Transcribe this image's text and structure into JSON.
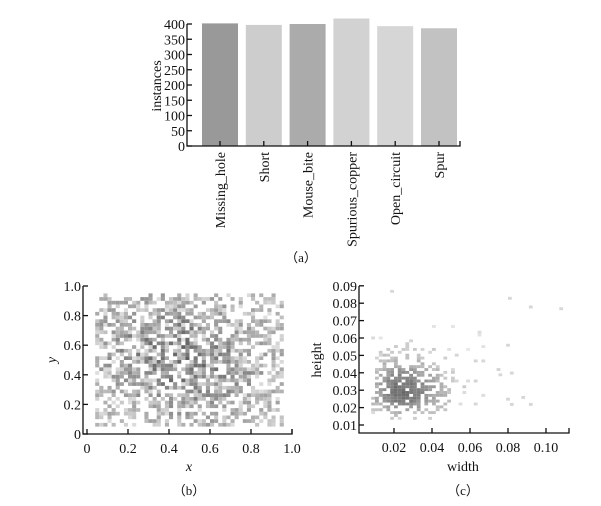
{
  "chart_data": [
    {
      "id": "a",
      "type": "bar",
      "caption": "（a）",
      "title": "",
      "xlabel": "",
      "ylabel": "instances",
      "categories": [
        "Missing_hole",
        "Short",
        "Mouse_bite",
        "Spurious_copper",
        "Open_circuit",
        "Spur"
      ],
      "values": [
        402,
        397,
        400,
        418,
        393,
        386
      ],
      "colors": [
        "#999999",
        "#cdcdcd",
        "#ababab",
        "#d2d2d2",
        "#d6d6d6",
        "#c2c2c2"
      ],
      "ylim": [
        0,
        400
      ],
      "yticks": [
        0,
        50,
        100,
        150,
        200,
        250,
        300,
        350,
        400
      ],
      "ytick_labels": [
        "0",
        "50",
        "100",
        "150",
        "200",
        "250",
        "300",
        "350",
        "400"
      ],
      "grid": false
    },
    {
      "id": "b",
      "type": "heatmap",
      "subtype": "2d-histogram",
      "caption": "（b）",
      "title": "",
      "xlabel": "x",
      "ylabel": "y",
      "xlim": [
        0,
        1.0
      ],
      "ylim": [
        0,
        1.0
      ],
      "xticks": [
        0,
        0.2,
        0.4,
        0.6,
        0.8,
        1.0
      ],
      "xtick_labels": [
        "0",
        "0.2",
        "0.4",
        "0.6",
        "0.8",
        "1.0"
      ],
      "yticks": [
        0,
        0.2,
        0.4,
        0.6,
        0.8,
        1.0
      ],
      "ytick_labels": [
        "0",
        "0.2",
        "0.4",
        "0.6",
        "0.8",
        "1.0"
      ],
      "data_extent": {
        "x": [
          0.04,
          0.96
        ],
        "y": [
          0.05,
          0.95
        ]
      },
      "density_description": "Roughly uniform scatter of bounding-box centers across the image, denser in the middle (x 0.3-0.8, y 0.2-0.8)",
      "density_peaks": [
        {
          "x": 0.55,
          "y": 0.4,
          "spread": 0.25
        },
        {
          "x": 0.35,
          "y": 0.6,
          "spread": 0.25
        }
      ],
      "grid": false
    },
    {
      "id": "c",
      "type": "heatmap",
      "subtype": "2d-histogram",
      "caption": "（c）",
      "title": "",
      "xlabel": "width",
      "ylabel": "height",
      "xlim": [
        0.005,
        0.112
      ],
      "ylim": [
        0.007,
        0.09
      ],
      "xticks": [
        0.02,
        0.04,
        0.06,
        0.08,
        0.1
      ],
      "xtick_labels": [
        "0.02",
        "0.04",
        "0.06",
        "0.08",
        "0.10"
      ],
      "yticks": [
        0.01,
        0.02,
        0.03,
        0.04,
        0.05,
        0.06,
        0.07,
        0.08,
        0.09
      ],
      "ytick_labels": [
        "0.01",
        "0.02",
        "0.03",
        "0.04",
        "0.05",
        "0.06",
        "0.07",
        "0.08",
        "0.09"
      ],
      "data_extent": {
        "x": [
          0.008,
          0.108
        ],
        "y": [
          0.012,
          0.087
        ]
      },
      "density_description": "Concentrated cluster of normalized box sizes around width 0.02, height 0.027, with a sparse tail to width 0.1 and height 0.085",
      "density_peaks": [
        {
          "x": 0.022,
          "y": 0.027,
          "spread_x": 0.01,
          "spread_y": 0.008
        }
      ],
      "outliers": [
        [
          0.08,
          0.082
        ],
        [
          0.091,
          0.077
        ],
        [
          0.107,
          0.076
        ],
        [
          0.079,
          0.055
        ],
        [
          0.075,
          0.038
        ],
        [
          0.081,
          0.039
        ],
        [
          0.087,
          0.025
        ],
        [
          0.091,
          0.021
        ],
        [
          0.081,
          0.021
        ],
        [
          0.079,
          0.024
        ],
        [
          0.018,
          0.086
        ]
      ],
      "grid": false
    }
  ]
}
